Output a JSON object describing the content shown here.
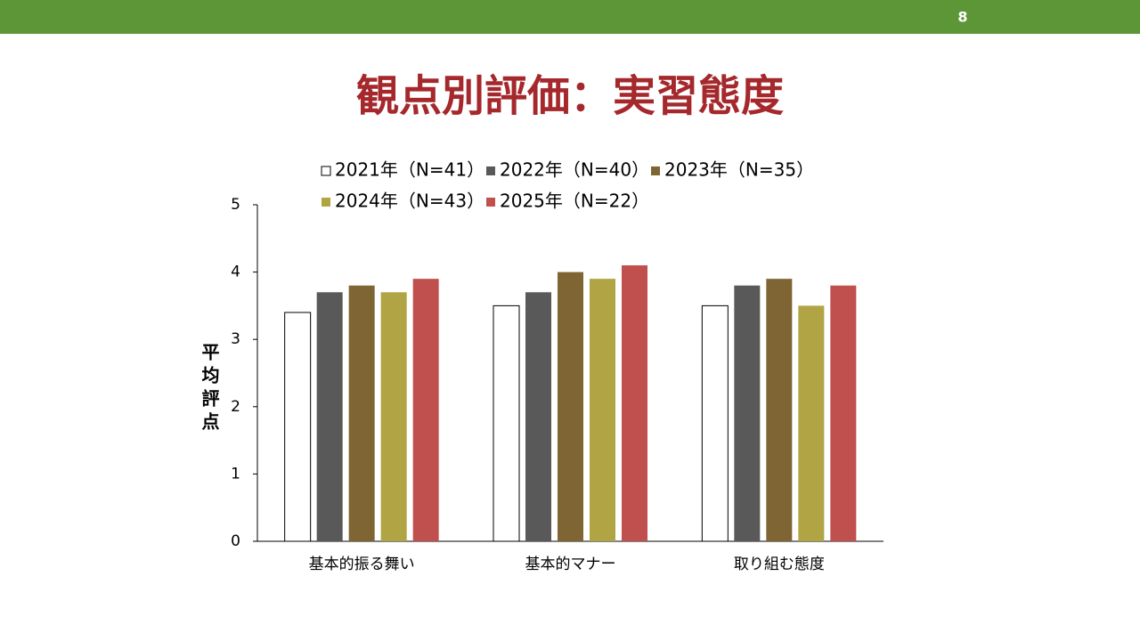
{
  "page_number": "8",
  "chart_data": {
    "type": "bar",
    "title": "観点別評価：実習態度",
    "y_label": "平均評点",
    "categories": [
      "基本的振る舞い",
      "基本的マナー",
      "取り組む態度"
    ],
    "series": [
      {
        "name": "2021年（N=41）",
        "color": "#ffffff",
        "edgecolor": "#000000",
        "values": [
          3.4,
          3.5,
          3.5
        ]
      },
      {
        "name": "2022年（N=40）",
        "color": "#595959",
        "values": [
          3.7,
          3.7,
          3.8
        ]
      },
      {
        "name": "2023年（N=35）",
        "color": "#7f6534",
        "values": [
          3.8,
          4.0,
          3.9
        ]
      },
      {
        "name": "2024年（N=43）",
        "color": "#b0a444",
        "values": [
          3.7,
          3.9,
          3.5
        ]
      },
      {
        "name": "2025年（N=22）",
        "color": "#c0504d",
        "values": [
          3.9,
          4.1,
          3.8
        ]
      }
    ],
    "ylim": [
      0,
      5
    ],
    "yticks": [
      0,
      1,
      2,
      3,
      4,
      5
    ],
    "grid": false,
    "legend": "top"
  }
}
